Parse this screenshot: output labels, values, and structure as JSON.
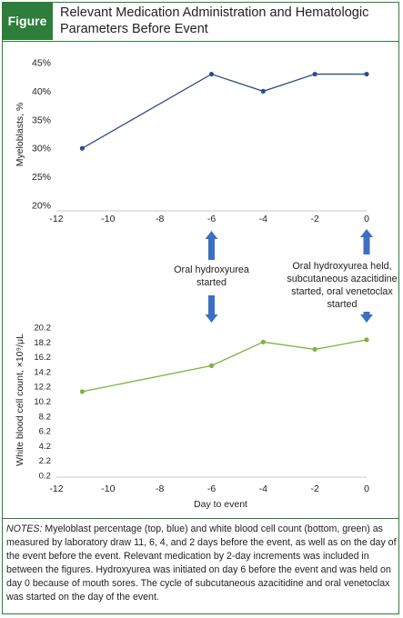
{
  "header": {
    "badge": "Figure",
    "title": "Relevant Medication Administration and Hematologic Parameters Before Event"
  },
  "colors": {
    "accent": "#2e7d3b",
    "top_series": "#2b4e8c",
    "bottom_series": "#7cb342",
    "arrow": "#3d6fc0"
  },
  "chart_data": [
    {
      "type": "line",
      "ylabel": "Myeloblasts, %",
      "xlabel": "",
      "x": [
        -11,
        -6,
        -4,
        -2,
        0
      ],
      "series": [
        {
          "values": [
            30,
            43,
            40,
            43,
            43
          ]
        }
      ],
      "xlim": [
        -12,
        0
      ],
      "ylim": [
        20,
        45
      ],
      "xticks": [
        "-12",
        "-10",
        "-8",
        "-6",
        "-4",
        "-2",
        "0"
      ],
      "yticks": [
        "20%",
        "25%",
        "30%",
        "35%",
        "40%",
        "45%"
      ],
      "grid": false
    },
    {
      "type": "line",
      "ylabel": "White blood cell count, ×10⁹/μL",
      "xlabel": "Day to event",
      "x": [
        -11,
        -6,
        -4,
        -2,
        0
      ],
      "series": [
        {
          "values": [
            11.5,
            15.0,
            18.2,
            17.2,
            18.5
          ]
        }
      ],
      "xlim": [
        -12,
        0
      ],
      "ylim": [
        0.2,
        20.2
      ],
      "xticks": [
        "-12",
        "-10",
        "-8",
        "-6",
        "-4",
        "-2",
        "0"
      ],
      "yticks": [
        "0.2",
        "2.2",
        "4.2",
        "6.2",
        "8.2",
        "10.2",
        "12.2",
        "14.2",
        "16.2",
        "18.2",
        "20.2"
      ],
      "grid": false
    }
  ],
  "annotations": [
    {
      "day": -6,
      "lines": [
        "Oral hydroxyurea",
        "started"
      ]
    },
    {
      "day": 0,
      "lines": [
        "Oral hydroxyurea held,",
        "subcutaneous azacitidine",
        "started, oral venetoclax",
        "started"
      ]
    }
  ],
  "notes": {
    "label": "NOTES:",
    "text": " Myeloblast percentage (top, blue) and white blood cell count (bottom, green) as measured by laboratory draw 11, 6, 4, and 2 days before the event, as well as on the day of the event before the event. Relevant medication by 2-day increments was included in between the figures. Hydroxyurea was initiated on day 6 before the event and was held on day 0 because of mouth sores. The cycle of subcutaneous azacitidine and oral venetoclax was started on the day of the event."
  }
}
